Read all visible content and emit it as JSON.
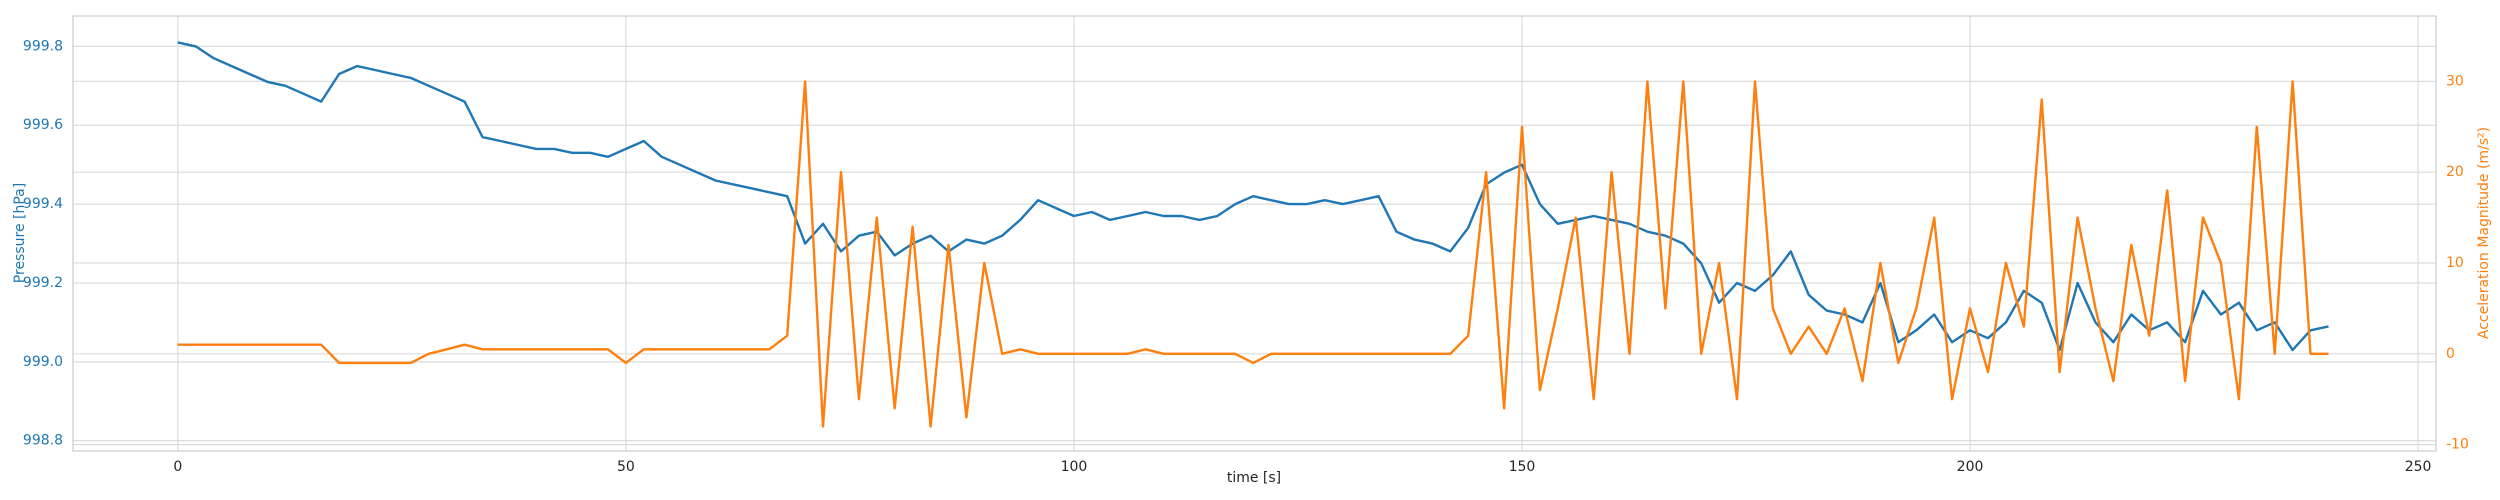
{
  "chart_data": {
    "type": "line",
    "xlabel": "time [s]",
    "ylabel": "Pressure [hPa]",
    "y2label": "Acceleration Magnitude (m/s²)",
    "xlim": [
      -11.7,
      252
    ],
    "xticks": [
      0,
      50,
      100,
      150,
      200,
      250
    ],
    "ylim": [
      998.774,
      999.877
    ],
    "yticks": [
      998.8,
      {
        "value": 999,
        "label": "999.0"
      },
      999.2,
      999.4,
      999.6,
      999.8
    ],
    "y2lim": [
      -10.7,
      37.2
    ],
    "y2ticks": [
      -10,
      0,
      10,
      20,
      30
    ],
    "grid": true,
    "x": [
      0,
      2,
      4,
      6,
      8,
      10,
      12,
      14,
      16,
      18,
      20,
      22,
      24,
      26,
      28,
      30,
      32,
      34,
      36,
      38,
      40,
      42,
      44,
      46,
      48,
      50,
      52,
      54,
      56,
      58,
      60,
      62,
      64,
      66,
      68,
      70,
      72,
      74,
      76,
      78,
      80,
      82,
      84,
      86,
      88,
      90,
      92,
      94,
      96,
      98,
      100,
      102,
      104,
      106,
      108,
      110,
      112,
      114,
      116,
      118,
      120,
      122,
      124,
      126,
      128,
      130,
      132,
      134,
      136,
      138,
      140,
      142,
      144,
      146,
      148,
      150,
      152,
      154,
      156,
      158,
      160,
      162,
      164,
      166,
      168,
      170,
      172,
      174,
      176,
      178,
      180,
      182,
      184,
      186,
      188,
      190,
      192,
      194,
      196,
      198,
      200,
      202,
      204,
      206,
      208,
      210,
      212,
      214,
      216,
      218,
      220,
      222,
      224,
      226,
      228,
      230,
      232,
      234,
      236,
      238,
      240
    ],
    "series": [
      {
        "name": "Pressure [hPa]",
        "color": "#1f77b4",
        "values": [
          999.81,
          999.8,
          999.77,
          999.75,
          999.73,
          999.71,
          999.7,
          999.68,
          999.66,
          999.73,
          999.75,
          999.74,
          999.73,
          999.72,
          999.7,
          999.68,
          999.66,
          999.57,
          999.56,
          999.55,
          999.54,
          999.54,
          999.53,
          999.53,
          999.52,
          999.54,
          999.56,
          999.52,
          999.5,
          999.48,
          999.46,
          999.45,
          999.44,
          999.43,
          999.42,
          999.3,
          999.35,
          999.28,
          999.32,
          999.33,
          999.27,
          999.3,
          999.32,
          999.28,
          999.31,
          999.3,
          999.32,
          999.36,
          999.41,
          999.39,
          999.37,
          999.38,
          999.36,
          999.37,
          999.38,
          999.37,
          999.37,
          999.36,
          999.37,
          999.4,
          999.42,
          999.41,
          999.4,
          999.4,
          999.41,
          999.4,
          999.41,
          999.42,
          999.33,
          999.31,
          999.3,
          999.28,
          999.34,
          999.45,
          999.48,
          999.5,
          999.4,
          999.35,
          999.36,
          999.37,
          999.36,
          999.35,
          999.33,
          999.32,
          999.3,
          999.25,
          999.15,
          999.2,
          999.18,
          999.22,
          999.28,
          999.17,
          999.13,
          999.12,
          999.1,
          999.2,
          999.05,
          999.08,
          999.12,
          999.05,
          999.08,
          999.06,
          999.1,
          999.18,
          999.15,
          999.03,
          999.2,
          999.1,
          999.05,
          999.12,
          999.08,
          999.1,
          999.05,
          999.18,
          999.12,
          999.15,
          999.08,
          999.1,
          999.03,
          999.08,
          999.09
        ]
      },
      {
        "name": "Acceleration Magnitude (m/s²)",
        "color": "#ff7f0e",
        "axis": "y2",
        "values": [
          1,
          1,
          1,
          1,
          1,
          1,
          1,
          1,
          1,
          -1,
          -1,
          -1,
          -1,
          -1,
          0,
          0.5,
          1,
          0.5,
          0.5,
          0.5,
          0.5,
          0.5,
          0.5,
          0.5,
          0.5,
          -1,
          0.5,
          0.5,
          0.5,
          0.5,
          0.5,
          0.5,
          0.5,
          0.5,
          2,
          30,
          -8,
          20,
          -5,
          15,
          -6,
          14,
          -8,
          12,
          -7,
          10,
          0,
          0.5,
          0,
          0,
          0,
          0,
          0,
          0,
          0.5,
          0,
          0,
          0,
          0,
          0,
          -1,
          0,
          0,
          0,
          0,
          0,
          0,
          0,
          0,
          0,
          0,
          0,
          2,
          20,
          -6,
          25,
          -4,
          5,
          15,
          -5,
          20,
          0,
          30,
          5,
          30,
          0,
          10,
          -5,
          30,
          5,
          0,
          3,
          0,
          5,
          -3,
          10,
          -1,
          5,
          15,
          -5,
          5,
          -2,
          10,
          3,
          28,
          -2,
          15,
          5,
          -3,
          12,
          2,
          18,
          -3,
          15,
          10,
          -5,
          25,
          0,
          30,
          0,
          0
        ]
      }
    ]
  }
}
